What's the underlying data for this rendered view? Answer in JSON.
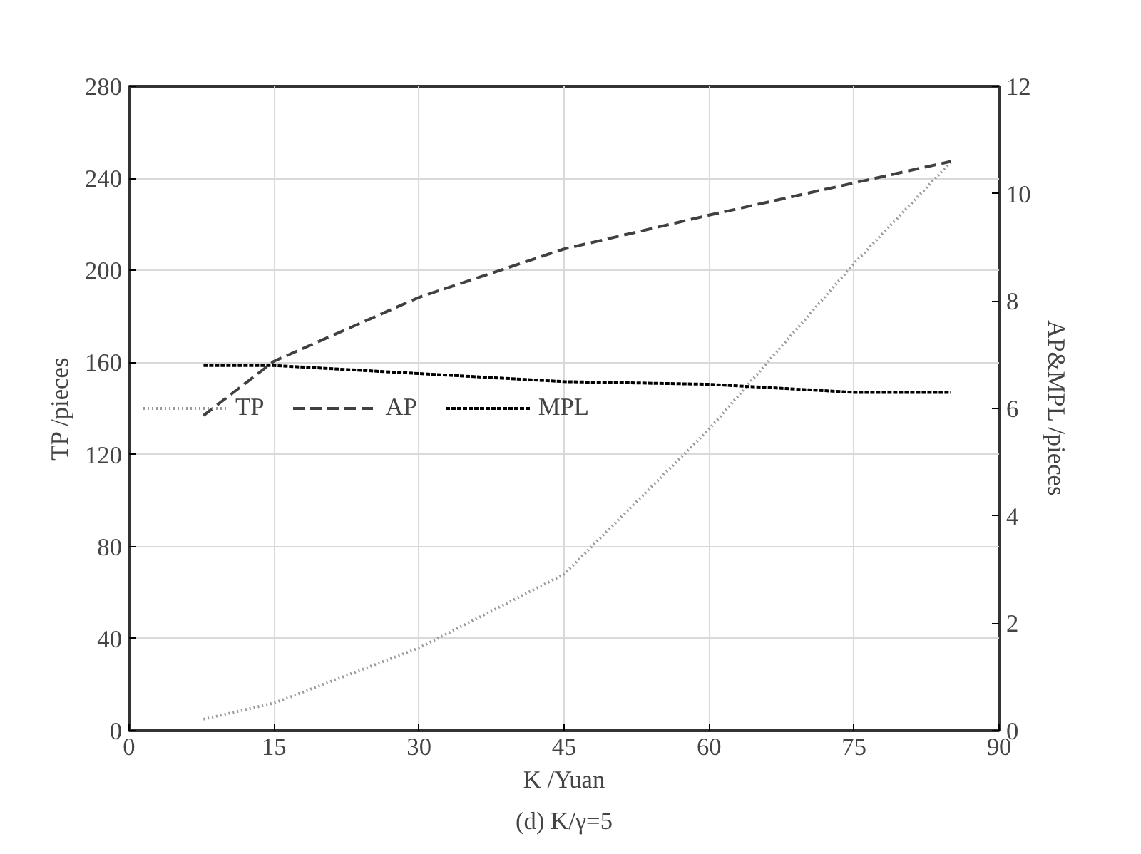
{
  "chart_data": {
    "type": "line",
    "xlabel": "K /Yuan",
    "ylabel": "TP /pieces",
    "y2label": "AP&MPL /pieces",
    "xlim": [
      0,
      90
    ],
    "xticks": [
      0,
      15,
      30,
      45,
      60,
      75,
      90
    ],
    "ylim": [
      0,
      280
    ],
    "yticks": [
      0,
      40,
      80,
      120,
      160,
      200,
      240,
      280
    ],
    "y2lim": [
      0,
      12
    ],
    "y2ticks": [
      0,
      2,
      4,
      6,
      8,
      10,
      12
    ],
    "grid": true,
    "legend": "left",
    "marker": "none",
    "x": [
      7.7,
      15,
      30,
      45,
      60,
      75,
      85
    ],
    "series": [
      {
        "name": "TP",
        "color": "#999999",
        "line_style": "dotted",
        "values": [
          5,
          12,
          36,
          68,
          131,
          203,
          247
        ]
      },
      {
        "name": "AP",
        "color": "#404040",
        "line_style": "dashed",
        "axis": "y2",
        "values": [
          5.87,
          6.88,
          8.07,
          8.97,
          9.6,
          10.2,
          10.6
        ]
      },
      {
        "name": "MPL",
        "color": "#000000",
        "line_style": "dashdot",
        "axis": "y2",
        "values": [
          6.8,
          6.8,
          6.65,
          6.5,
          6.45,
          6.3,
          6.3
        ]
      }
    ],
    "annotations": [
      "(d) K/γ=5"
    ]
  }
}
